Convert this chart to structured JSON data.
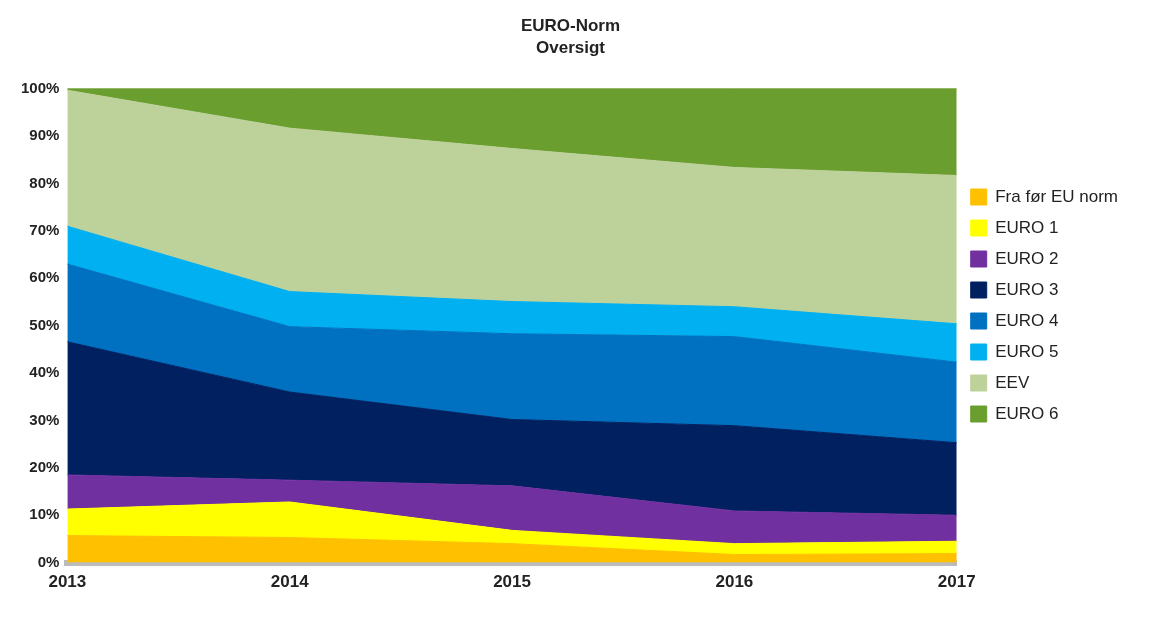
{
  "chart_data": {
    "type": "area",
    "title": "EURO-Norm",
    "subtitle": "Oversigt",
    "stacked": true,
    "categories": [
      "2013",
      "2014",
      "2015",
      "2016",
      "2017"
    ],
    "series": [
      {
        "name": "Fra før EU norm",
        "color": "#ffc000",
        "values": [
          5.7,
          5.3,
          4,
          1.7,
          1.9
        ]
      },
      {
        "name": "EURO 1",
        "color": "#ffff00",
        "values": [
          5.6,
          7.5,
          2.8,
          2.3,
          2.6
        ]
      },
      {
        "name": "EURO 2",
        "color": "#7030a0",
        "values": [
          7.2,
          4.6,
          9.4,
          6.9,
          5.5
        ]
      },
      {
        "name": "EURO 3",
        "color": "#002060",
        "values": [
          28.1,
          18.6,
          14,
          18,
          15.3
        ]
      },
      {
        "name": "EURO 4",
        "color": "#0070c0",
        "values": [
          16.4,
          13.8,
          18.1,
          18.8,
          17
        ]
      },
      {
        "name": "EURO 5",
        "color": "#00b0f0",
        "values": [
          8,
          7.4,
          6.8,
          6.3,
          8.1
        ]
      },
      {
        "name": "EEV",
        "color": "#bdd19a",
        "values": [
          28.7,
          34.5,
          32.3,
          29.4,
          31.3
        ]
      },
      {
        "name": "EURO 6",
        "color": "#6a9e2f",
        "values": [
          0.3,
          8.3,
          12.6,
          16.6,
          18.3
        ]
      }
    ],
    "ylim": [
      0,
      100
    ],
    "yticks": [
      {
        "value": 0,
        "label": "0%"
      },
      {
        "value": 10,
        "label": "10%"
      },
      {
        "value": 20,
        "label": "20%"
      },
      {
        "value": 30,
        "label": "30%"
      },
      {
        "value": 40,
        "label": "40%"
      },
      {
        "value": 50,
        "label": "50%"
      },
      {
        "value": 60,
        "label": "60%"
      },
      {
        "value": 70,
        "label": "70%"
      },
      {
        "value": 80,
        "label": "80%"
      },
      {
        "value": 90,
        "label": "90%"
      },
      {
        "value": 100,
        "label": "100%"
      }
    ],
    "grid": false,
    "legend": "right"
  }
}
